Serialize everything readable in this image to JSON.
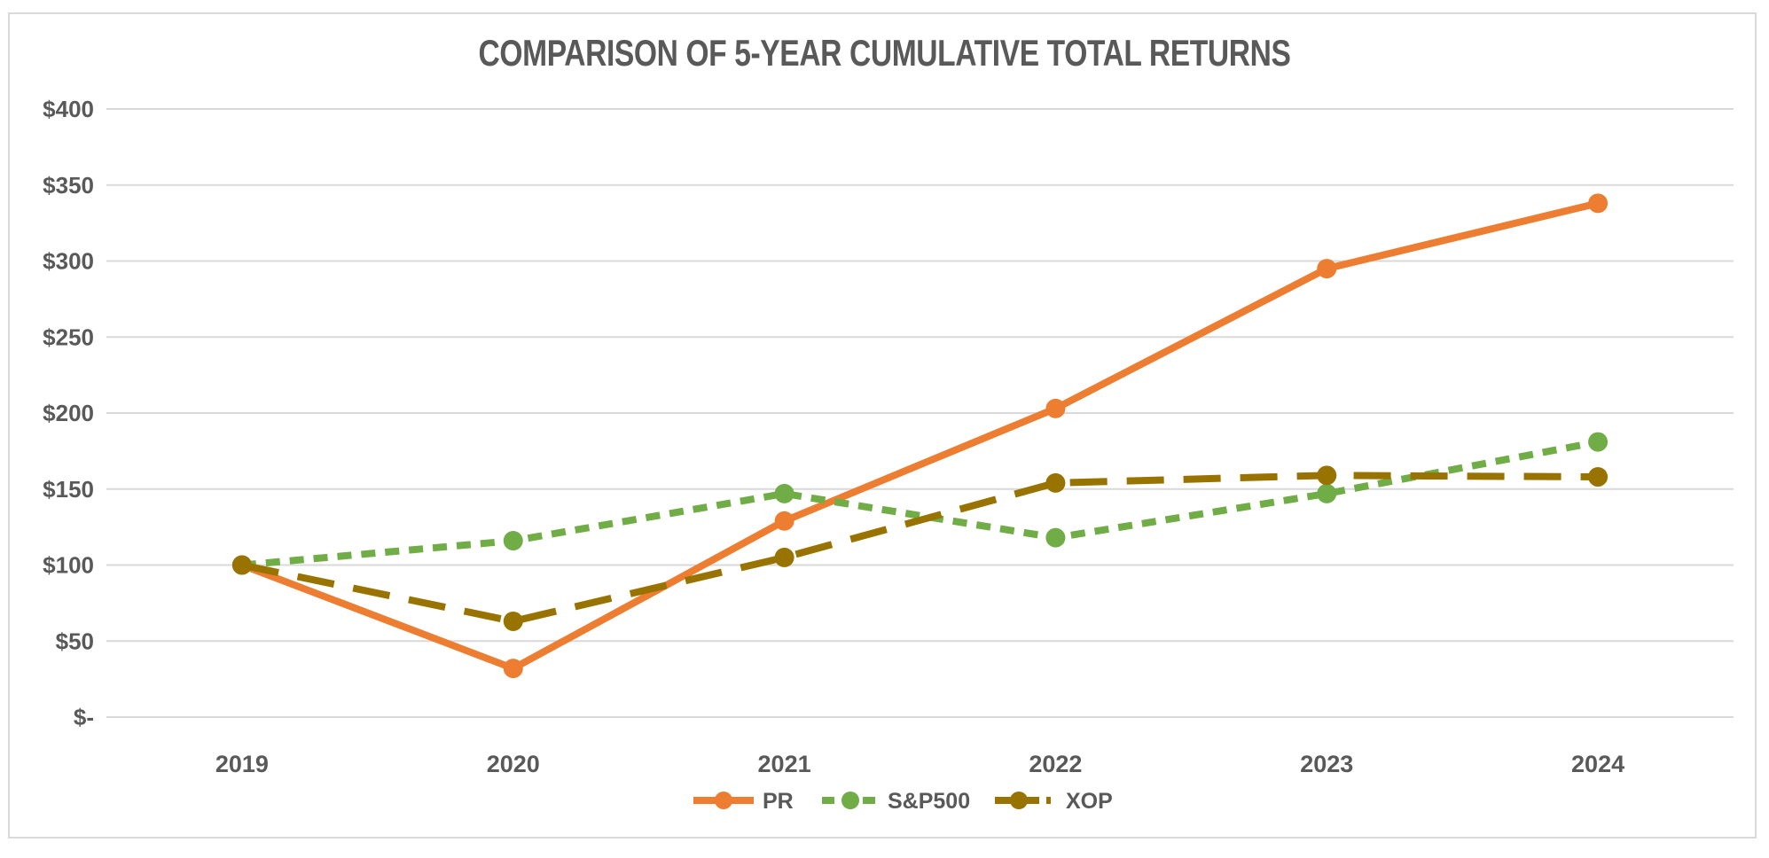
{
  "chart": {
    "title": "COMPARISON OF 5-YEAR CUMULATIVE TOTAL RETURNS"
  },
  "chart_data": {
    "type": "line",
    "title": "COMPARISON OF 5-YEAR CUMULATIVE TOTAL RETURNS",
    "categories": [
      "2019",
      "2020",
      "2021",
      "2022",
      "2023",
      "2024"
    ],
    "series": [
      {
        "name": "PR",
        "values": [
          100,
          32,
          129,
          203,
          295,
          338
        ],
        "color": "#ED7D31",
        "style": "solid"
      },
      {
        "name": "S&P500",
        "values": [
          100,
          116,
          147,
          118,
          147,
          181
        ],
        "color": "#70AD47",
        "style": "short-dash"
      },
      {
        "name": "XOP",
        "values": [
          100,
          63,
          105,
          154,
          159,
          158
        ],
        "color": "#997300",
        "style": "long-dash"
      }
    ],
    "y_axis": {
      "min": 0,
      "max": 400,
      "step": 50,
      "tick_labels": [
        "$-",
        "$50",
        "$100",
        "$150",
        "$200",
        "$250",
        "$300",
        "$350",
        "$400"
      ]
    },
    "x_axis": {
      "labels": [
        "2019",
        "2020",
        "2021",
        "2022",
        "2023",
        "2024"
      ]
    },
    "legend": {
      "position": "bottom",
      "entries": [
        "PR",
        "S&P500",
        "XOP"
      ]
    },
    "grid": true,
    "ylim": [
      0,
      400
    ],
    "colors": {
      "text": "#595959",
      "gridline": "#D9D9D9",
      "border": "#D9D9D9",
      "background": "#FFFFFF"
    }
  }
}
